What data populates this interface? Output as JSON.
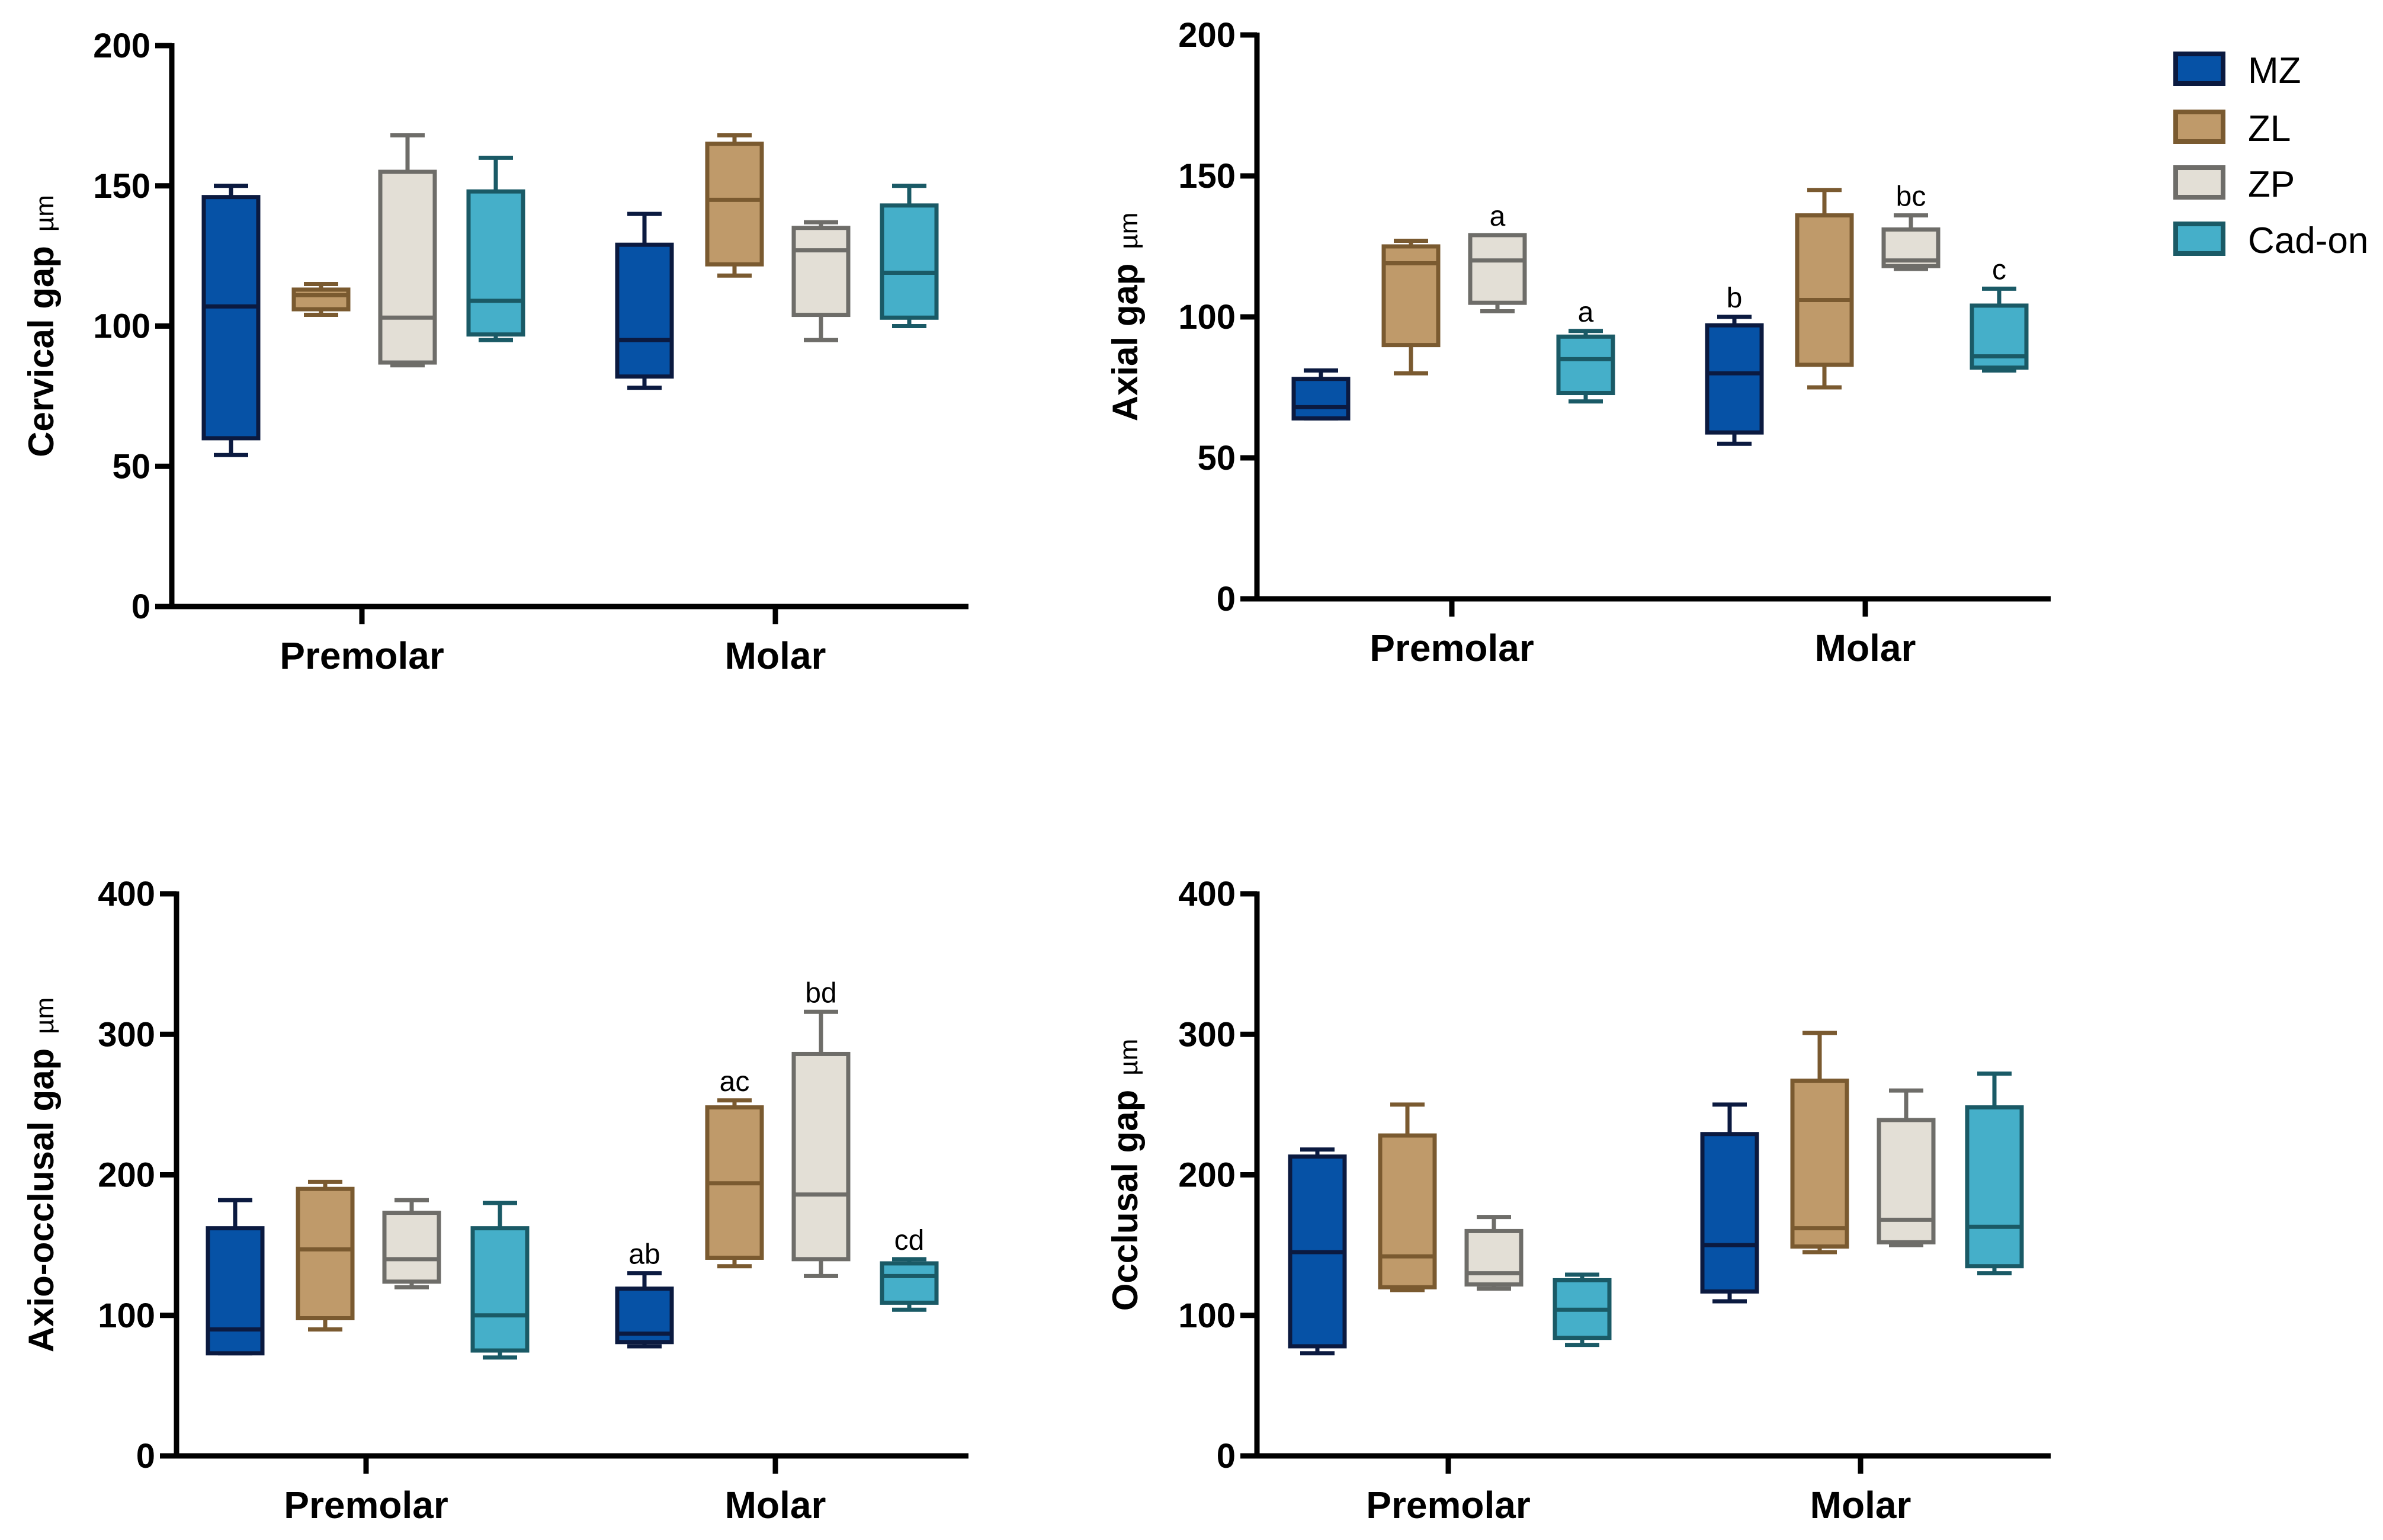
{
  "chart_data": [
    {
      "type": "box",
      "ylabel": "Cervical gap",
      "yunit": "µm",
      "ylim": [
        0,
        200
      ],
      "yticks": [
        0,
        50,
        100,
        150,
        200
      ],
      "categories": [
        "Premolar",
        "Molar"
      ],
      "series_names": [
        "MZ",
        "ZL",
        "ZP",
        "Cad-on"
      ],
      "boxes": {
        "Premolar": [
          [
            54,
            60,
            107,
            146,
            150
          ],
          [
            104,
            106,
            111,
            113,
            115
          ],
          [
            86,
            87,
            103,
            155,
            168
          ],
          [
            95,
            97,
            109,
            148,
            160
          ]
        ],
        "Molar": [
          [
            78,
            82,
            95,
            129,
            140
          ],
          [
            118,
            122,
            145,
            165,
            168
          ],
          [
            95,
            104,
            127,
            135,
            137
          ],
          [
            100,
            103,
            119,
            143,
            150
          ]
        ]
      },
      "labels": {
        "Premolar": [
          "",
          "",
          "",
          ""
        ],
        "Molar": [
          "",
          "",
          "",
          ""
        ]
      }
    },
    {
      "type": "box",
      "ylabel": "Axial gap",
      "yunit": "µm",
      "ylim": [
        0,
        200
      ],
      "yticks": [
        0,
        50,
        100,
        150,
        200
      ],
      "categories": [
        "Premolar",
        "Molar"
      ],
      "series_names": [
        "MZ",
        "ZL",
        "ZP",
        "Cad-on"
      ],
      "boxes": {
        "Premolar": [
          [
            64,
            64,
            68,
            78,
            81
          ],
          [
            80,
            90,
            119,
            125,
            127
          ],
          [
            102,
            105,
            120,
            129,
            129
          ],
          [
            70,
            73,
            85,
            93,
            95
          ]
        ],
        "Molar": [
          [
            55,
            59,
            80,
            97,
            100
          ],
          [
            75,
            83,
            106,
            136,
            145
          ],
          [
            117,
            118,
            120,
            131,
            136
          ],
          [
            81,
            82,
            86,
            104,
            110
          ]
        ]
      },
      "labels": {
        "Premolar": [
          "",
          "",
          "a",
          "a"
        ],
        "Molar": [
          "b",
          "",
          "bc",
          "c"
        ]
      }
    },
    {
      "type": "box",
      "ylabel": "Axio-occlusal gap",
      "yunit": "µm",
      "ylim": [
        0,
        400
      ],
      "yticks": [
        0,
        100,
        200,
        300,
        400
      ],
      "categories": [
        "Premolar",
        "Molar"
      ],
      "series_names": [
        "MZ",
        "ZL",
        "ZP",
        "Cad-on"
      ],
      "boxes": {
        "Premolar": [
          [
            73,
            73,
            90,
            162,
            182
          ],
          [
            90,
            98,
            147,
            190,
            195
          ],
          [
            120,
            124,
            140,
            173,
            182
          ],
          [
            70,
            75,
            100,
            162,
            180
          ]
        ],
        "Molar": [
          [
            78,
            81,
            87,
            119,
            130
          ],
          [
            135,
            141,
            194,
            248,
            253
          ],
          [
            128,
            140,
            186,
            286,
            316
          ],
          [
            104,
            109,
            128,
            137,
            140
          ]
        ]
      },
      "labels": {
        "Premolar": [
          "",
          "",
          "",
          ""
        ],
        "Molar": [
          "ab",
          "ac",
          "bd",
          "cd"
        ]
      }
    },
    {
      "type": "box",
      "ylabel": "Occlusal gap",
      "yunit": "µm",
      "ylim": [
        0,
        400
      ],
      "yticks": [
        0,
        100,
        200,
        300,
        400
      ],
      "categories": [
        "Premolar",
        "Molar"
      ],
      "series_names": [
        "MZ",
        "ZL",
        "ZP",
        "Cad-on"
      ],
      "boxes": {
        "Premolar": [
          [
            73,
            78,
            145,
            213,
            218
          ],
          [
            118,
            120,
            142,
            228,
            250
          ],
          [
            119,
            122,
            130,
            160,
            170
          ],
          [
            79,
            84,
            104,
            125,
            129
          ]
        ],
        "Molar": [
          [
            110,
            117,
            150,
            229,
            250
          ],
          [
            145,
            149,
            162,
            267,
            301
          ],
          [
            150,
            152,
            168,
            239,
            260
          ],
          [
            130,
            135,
            163,
            248,
            272
          ]
        ]
      },
      "labels": {
        "Premolar": [
          "",
          "",
          "",
          ""
        ],
        "Molar": [
          "",
          "",
          "",
          ""
        ]
      }
    }
  ],
  "legend": {
    "placement": "top-right",
    "items": [
      {
        "label": "MZ",
        "fill": "#0652A6",
        "stroke": "#0B1A40"
      },
      {
        "label": "ZL",
        "fill": "#BF9A6A",
        "stroke": "#7A5A30"
      },
      {
        "label": "ZP",
        "fill": "#E3DFD6",
        "stroke": "#6E6D69"
      },
      {
        "label": "Cad-on",
        "fill": "#45AFC9",
        "stroke": "#1A5A66"
      }
    ]
  }
}
